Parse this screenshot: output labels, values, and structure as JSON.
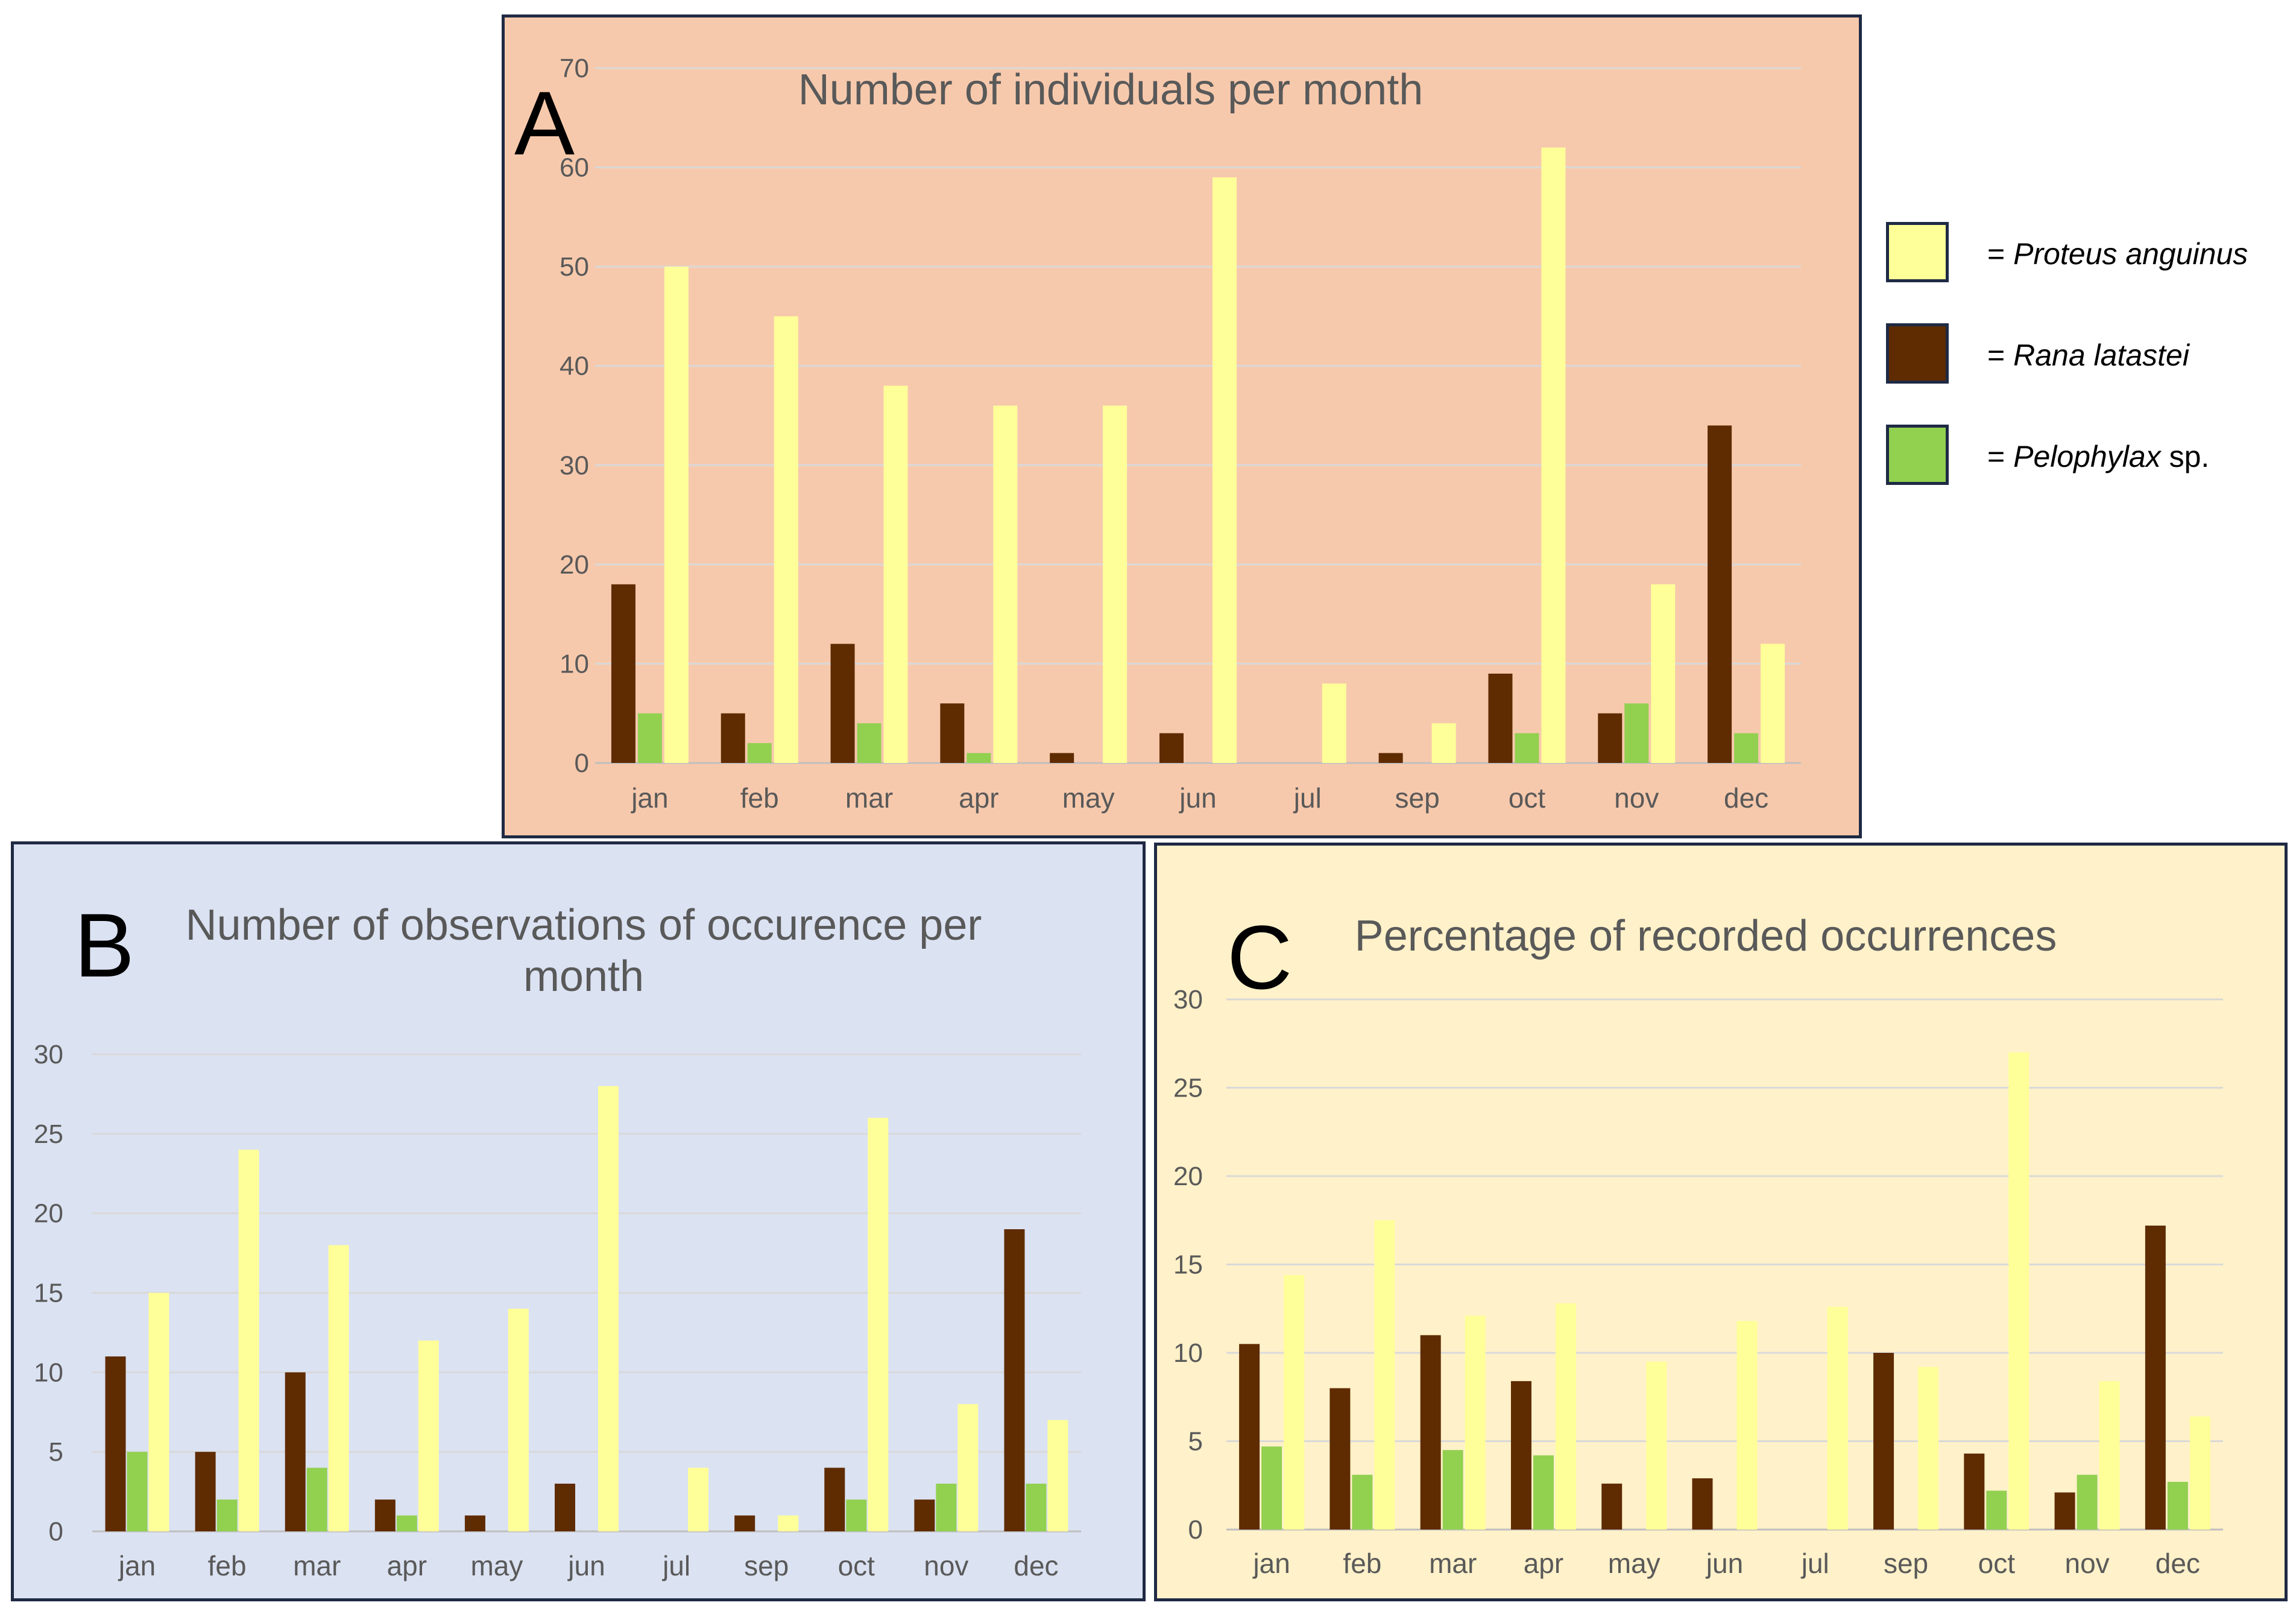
{
  "legend": {
    "prefix": "=",
    "items": [
      {
        "species": "Proteus anguinus",
        "suffix": "",
        "color": "#ffff99"
      },
      {
        "species": "Rana latastei",
        "suffix": "",
        "color": "#5f2b00"
      },
      {
        "species": "Pelophylax",
        "suffix": "sp.",
        "color": "#92d050"
      }
    ]
  },
  "colors": {
    "proteus": "#ffff99",
    "rana": "#5f2b00",
    "pelophylax": "#92d050",
    "grid": "#d9d9d9",
    "panel_a_bg": "#f7c9ac",
    "panel_b_bg": "#dbe2f2",
    "panel_c_bg": "#fff1c9"
  },
  "chart_data": [
    {
      "id": "A",
      "letter": "A",
      "type": "bar",
      "title": "Number of individuals per month",
      "xlabel": "",
      "ylabel": "",
      "ylim": [
        0,
        70
      ],
      "yticks": [
        0,
        10,
        20,
        30,
        40,
        50,
        60,
        70
      ],
      "grid": true,
      "categories": [
        "jan",
        "feb",
        "mar",
        "apr",
        "may",
        "jun",
        "jul",
        "sep",
        "oct",
        "nov",
        "dec"
      ],
      "series": [
        {
          "name": "Rana latastei",
          "values": [
            18,
            5,
            12,
            6,
            1,
            3,
            0,
            1,
            9,
            5,
            34
          ]
        },
        {
          "name": "Pelophylax sp.",
          "values": [
            5,
            2,
            4,
            1,
            0,
            0,
            0,
            0,
            3,
            6,
            3
          ]
        },
        {
          "name": "Proteus anguinus",
          "values": [
            50,
            45,
            38,
            36,
            36,
            59,
            8,
            4,
            62,
            18,
            12
          ]
        }
      ]
    },
    {
      "id": "B",
      "letter": "B",
      "type": "bar",
      "title": "Number of observations of occurence per month",
      "xlabel": "",
      "ylabel": "",
      "ylim": [
        0,
        30
      ],
      "yticks": [
        0,
        5,
        10,
        15,
        20,
        25,
        30
      ],
      "grid": true,
      "categories": [
        "jan",
        "feb",
        "mar",
        "apr",
        "may",
        "jun",
        "jul",
        "sep",
        "oct",
        "nov",
        "dec"
      ],
      "series": [
        {
          "name": "Rana latastei",
          "values": [
            11,
            5,
            10,
            2,
            1,
            3,
            0,
            1,
            4,
            2,
            19
          ]
        },
        {
          "name": "Pelophylax sp.",
          "values": [
            5,
            2,
            4,
            1,
            0,
            0,
            0,
            0,
            2,
            3,
            3
          ]
        },
        {
          "name": "Proteus anguinus",
          "values": [
            15,
            24,
            18,
            12,
            14,
            28,
            4,
            1,
            26,
            8,
            7
          ]
        }
      ]
    },
    {
      "id": "C",
      "letter": "C",
      "type": "bar",
      "title": "Percentage of recorded occurrences",
      "xlabel": "",
      "ylabel": "",
      "ylim": [
        0,
        30
      ],
      "yticks": [
        0,
        5,
        10,
        15,
        20,
        25,
        30
      ],
      "grid": true,
      "categories": [
        "jan",
        "feb",
        "mar",
        "apr",
        "may",
        "jun",
        "jul",
        "sep",
        "oct",
        "nov",
        "dec"
      ],
      "series": [
        {
          "name": "Rana latastei",
          "values": [
            10.5,
            8,
            11,
            8.4,
            2.6,
            2.9,
            0,
            10,
            4.3,
            2.1,
            17.2
          ]
        },
        {
          "name": "Pelophylax sp.",
          "values": [
            4.7,
            3.1,
            4.5,
            4.2,
            0,
            0,
            0,
            0,
            2.2,
            3.1,
            2.7
          ]
        },
        {
          "name": "Proteus anguinus",
          "values": [
            14.4,
            17.5,
            12.1,
            12.8,
            9.5,
            11.8,
            12.6,
            9.2,
            27,
            8.4,
            6.4
          ]
        }
      ]
    }
  ]
}
